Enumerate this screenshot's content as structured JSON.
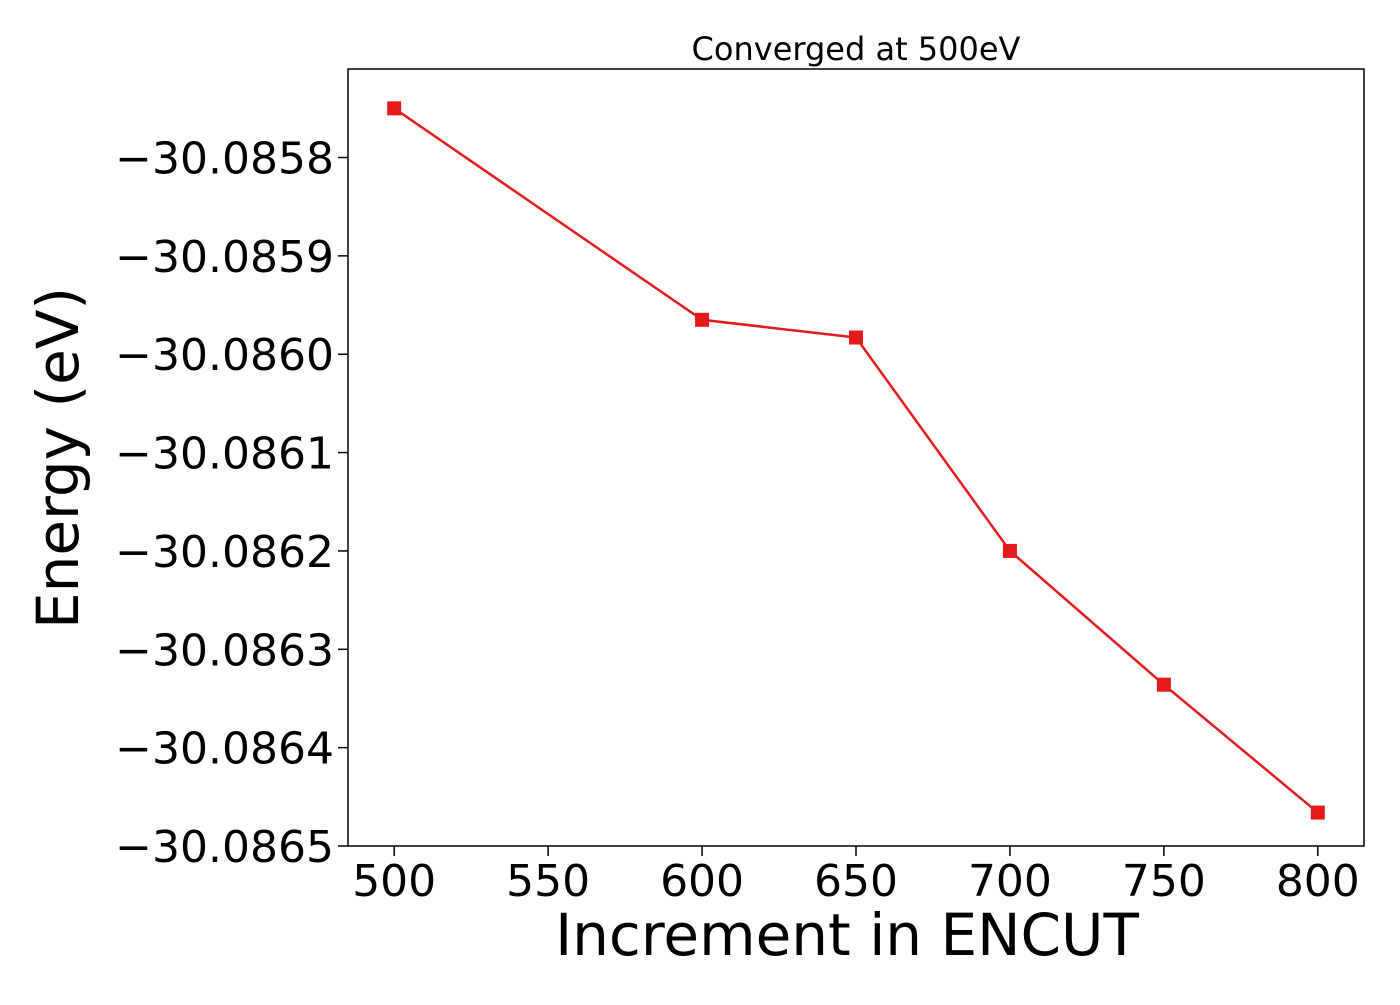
{
  "chart_data": {
    "type": "line",
    "title": "Converged at 500eV",
    "xlabel": "Increment in ENCUT",
    "ylabel": "Energy (eV)",
    "x": [
      500,
      600,
      650,
      700,
      750,
      800
    ],
    "series": [
      {
        "values": [
          -30.08575,
          -30.085965,
          -30.085983,
          -30.0862,
          -30.086336,
          -30.086466
        ],
        "color": "#e41a1c",
        "marker": "square"
      }
    ],
    "xlim": [
      485,
      815
    ],
    "ylim": [
      -30.0865,
      -30.08571
    ],
    "x_ticks": [
      500,
      550,
      600,
      650,
      700,
      750,
      800
    ],
    "x_tick_labels": [
      "500",
      "550",
      "600",
      "650",
      "700",
      "750",
      "800"
    ],
    "y_ticks": [
      -30.0858,
      -30.0859,
      -30.086,
      -30.0861,
      -30.0862,
      -30.0863,
      -30.0864,
      -30.0865
    ],
    "y_tick_labels": [
      "−30.0858",
      "−30.0859",
      "−30.0860",
      "−30.0861",
      "−30.0862",
      "−30.0863",
      "−30.0864",
      "−30.0865"
    ],
    "grid": false,
    "legend": "none"
  }
}
